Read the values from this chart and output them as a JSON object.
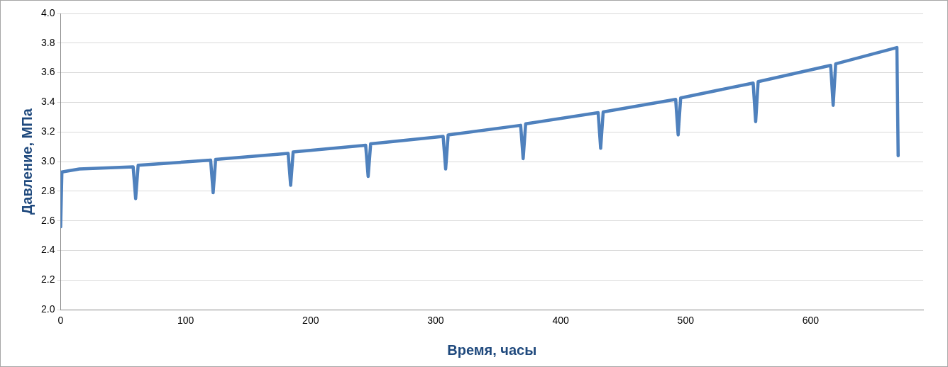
{
  "chart_data": {
    "type": "line",
    "xlabel": "Время, часы",
    "ylabel": "Давление, МПа",
    "x": [
      0,
      1,
      15,
      58,
      60,
      62,
      120,
      122,
      124,
      182,
      184,
      186,
      244,
      246,
      248,
      306,
      308,
      310,
      368,
      370,
      372,
      430,
      432,
      434,
      492,
      494,
      496,
      554,
      556,
      558,
      616,
      618,
      620,
      669,
      670
    ],
    "series": [
      {
        "color": "#4f81bd",
        "values": [
          2.56,
          2.93,
          2.95,
          2.965,
          2.75,
          2.975,
          3.01,
          2.79,
          3.015,
          3.055,
          2.84,
          3.065,
          3.11,
          2.9,
          3.12,
          3.17,
          2.95,
          3.18,
          3.245,
          3.02,
          3.255,
          3.33,
          3.09,
          3.335,
          3.42,
          3.18,
          3.43,
          3.53,
          3.27,
          3.54,
          3.65,
          3.38,
          3.66,
          3.77,
          3.04
        ]
      }
    ],
    "xlim": [
      0,
      690
    ],
    "xticks": [
      0,
      100,
      200,
      300,
      400,
      500,
      600
    ],
    "ylim": [
      2,
      4
    ],
    "yticks": [
      {
        "value": 2,
        "label": "2.0"
      },
      2.2,
      2.4,
      2.6,
      2.8,
      {
        "value": 3,
        "label": "3.0"
      },
      3.2,
      3.4,
      3.6,
      3.8,
      {
        "value": 4,
        "label": "4.0"
      }
    ],
    "grid": "y",
    "legend": false,
    "marker": "none",
    "line_style": "solid"
  }
}
